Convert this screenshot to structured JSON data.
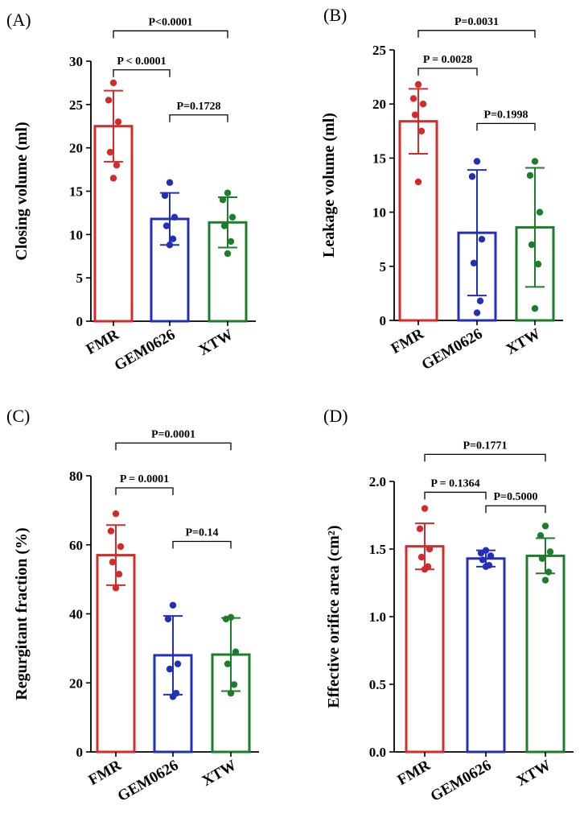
{
  "colors": {
    "FMR": "#d42a2a",
    "GEM0626": "#2230b8",
    "XTW": "#1e7d2a",
    "axis": "#000000"
  },
  "chart_data": [
    {
      "type": "bar",
      "panel": "(A)",
      "ylabel": "Closing volume (ml)",
      "ylim": [
        0,
        30
      ],
      "yticks": [
        0,
        5,
        10,
        15,
        20,
        25,
        30
      ],
      "categories": [
        "FMR",
        "GEM0626",
        "XTW"
      ],
      "means": [
        22.5,
        11.8,
        11.4
      ],
      "sd": [
        4.1,
        3.0,
        2.9
      ],
      "points": [
        [
          27.5,
          25.5,
          23.0,
          19.5,
          18.0,
          16.5
        ],
        [
          16.0,
          14.5,
          12.0,
          11.0,
          9.5,
          8.8
        ],
        [
          14.8,
          14.0,
          12.0,
          11.0,
          9.2,
          7.8
        ]
      ],
      "comparisons": [
        {
          "a": 0,
          "b": 1,
          "level": 29.0,
          "label": "P < 0.0001"
        },
        {
          "a": 1,
          "b": 2,
          "level": 23.8,
          "label": "P=0.1728"
        },
        {
          "a": 0,
          "b": 2,
          "level": 33.5,
          "label": "P<0.0001"
        }
      ]
    },
    {
      "type": "bar",
      "panel": "(B)",
      "ylabel": "Leakage volume (ml)",
      "ylim": [
        0,
        25
      ],
      "yticks": [
        0,
        5,
        10,
        15,
        20,
        25
      ],
      "categories": [
        "FMR",
        "GEM0626",
        "XTW"
      ],
      "means": [
        18.4,
        8.1,
        8.6
      ],
      "sd": [
        3.0,
        5.8,
        5.5
      ],
      "points": [
        [
          21.8,
          20.5,
          20.0,
          19.0,
          17.5,
          12.8
        ],
        [
          14.7,
          13.3,
          7.5,
          5.3,
          1.8,
          0.7
        ],
        [
          14.7,
          13.4,
          10.0,
          7.0,
          5.2,
          1.1
        ]
      ],
      "comparisons": [
        {
          "a": 0,
          "b": 1,
          "level": 23.3,
          "label": "P = 0.0028"
        },
        {
          "a": 1,
          "b": 2,
          "level": 18.2,
          "label": "P=0.1998"
        },
        {
          "a": 0,
          "b": 2,
          "level": 26.8,
          "label": "P=0.0031"
        }
      ]
    },
    {
      "type": "bar",
      "panel": "(C)",
      "ylabel": "Regurgitant fraction (%)",
      "ylim": [
        0,
        80
      ],
      "yticks": [
        0,
        20,
        40,
        60,
        80
      ],
      "categories": [
        "FMR",
        "GEM0626",
        "XTW"
      ],
      "means": [
        57.0,
        28.0,
        28.2
      ],
      "sd": [
        8.7,
        11.4,
        10.6
      ],
      "points": [
        [
          69.0,
          64.0,
          59.5,
          55.0,
          51.5,
          47.5
        ],
        [
          42.5,
          38.5,
          25.5,
          24.0,
          17.0,
          16.0
        ],
        [
          39.0,
          38.5,
          29.0,
          25.5,
          19.5,
          17.0
        ]
      ],
      "comparisons": [
        {
          "a": 0,
          "b": 1,
          "level": 76.5,
          "label": "P = 0.0001"
        },
        {
          "a": 1,
          "b": 2,
          "level": 61.0,
          "label": "P=0.14"
        },
        {
          "a": 0,
          "b": 2,
          "level": 89.5,
          "label": "P=0.0001"
        }
      ]
    },
    {
      "type": "bar",
      "panel": "(D)",
      "ylabel": "Effective orifice area (cm²)",
      "ylim": [
        0,
        2.0
      ],
      "yticks": [
        "0.0",
        "0.5",
        "1.0",
        "1.5",
        "2.0"
      ],
      "categories": [
        "FMR",
        "GEM0626",
        "XTW"
      ],
      "means": [
        1.52,
        1.43,
        1.45
      ],
      "sd": [
        0.17,
        0.06,
        0.13
      ],
      "points": [
        [
          1.8,
          1.65,
          1.5,
          1.44,
          1.37,
          1.35
        ],
        [
          1.49,
          1.47,
          1.45,
          1.42,
          1.38,
          1.37
        ],
        [
          1.67,
          1.6,
          1.48,
          1.43,
          1.33,
          1.27
        ]
      ],
      "comparisons": [
        {
          "a": 0,
          "b": 1,
          "level": 1.92,
          "label": "P = 0.1364"
        },
        {
          "a": 1,
          "b": 2,
          "level": 1.82,
          "label": "P=0.5000"
        },
        {
          "a": 0,
          "b": 2,
          "level": 2.2,
          "label": "P=0.1771"
        }
      ]
    }
  ]
}
